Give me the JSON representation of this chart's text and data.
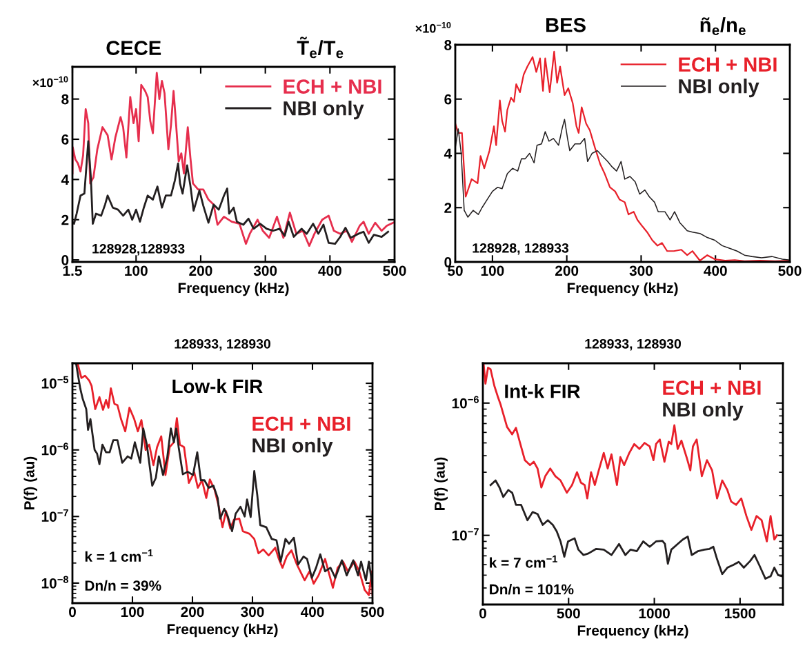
{
  "chart_data": [
    {
      "type": "line",
      "title": "CECE",
      "subtitle": "T̃$_{e}$/T$_{e}$",
      "xlabel": "Frequency (kHz)",
      "ylabel": "×10$^{−10}$",
      "annotations": [
        "128928,128933"
      ],
      "legend": "top right",
      "xlim": [
        1.5,
        500
      ],
      "xticks": [
        1.5,
        100,
        200,
        300,
        400,
        500
      ],
      "ylim": [
        -0.1,
        9.6
      ],
      "yticks": [
        0,
        2,
        4,
        6,
        8
      ],
      "series": [
        {
          "name": "ECH + NBI",
          "color": "#e62e4d",
          "x": [
            1.5,
            2,
            6,
            10,
            14,
            18,
            22,
            26,
            29,
            34,
            40,
            48,
            56,
            62,
            68,
            76,
            80,
            85,
            91,
            96,
            100,
            104,
            108,
            114,
            118,
            122,
            126,
            132,
            136,
            140,
            144,
            150,
            154,
            158,
            162,
            166,
            170,
            174,
            180,
            184,
            188,
            196,
            204,
            212,
            220,
            226,
            236,
            248,
            260,
            270,
            276,
            288,
            296,
            306,
            318,
            328,
            338,
            348,
            358,
            368,
            376,
            388,
            398,
            406,
            416,
            426,
            434,
            446,
            452,
            460,
            470,
            480,
            488,
            498
          ],
          "values": [
            4.3,
            5.6,
            5.0,
            4.8,
            4.4,
            5.2,
            7.5,
            6.8,
            3.8,
            4.1,
            5.5,
            6.6,
            6.2,
            5.0,
            6.1,
            7.1,
            6.6,
            5.1,
            8.1,
            6.8,
            7.5,
            5.9,
            8.7,
            8.4,
            8.1,
            6.9,
            6.3,
            9.3,
            8.0,
            8.9,
            8.3,
            5.5,
            6.7,
            8.4,
            6.7,
            4.9,
            5.3,
            4.3,
            6.6,
            5.1,
            3.8,
            3.5,
            3.5,
            3.0,
            2.75,
            1.75,
            2.15,
            1.9,
            1.8,
            0.8,
            1.3,
            2.0,
            1.45,
            1.1,
            2.15,
            1.1,
            2.35,
            1.3,
            1.45,
            0.7,
            1.3,
            2.0,
            2.2,
            1.45,
            1.3,
            1.45,
            0.9,
            1.7,
            1.9,
            1.3,
            1.85,
            1.45,
            1.7,
            1.85
          ]
        },
        {
          "name": "NBI only",
          "color": "#231f20",
          "x": [
            1.5,
            4,
            8,
            14,
            20,
            26,
            30,
            33,
            38,
            46,
            52,
            56,
            64,
            72,
            80,
            88,
            94,
            100,
            106,
            112,
            118,
            126,
            133,
            140,
            146,
            154,
            160,
            165,
            168,
            172,
            179,
            184,
            189,
            194,
            198,
            204,
            212,
            220,
            228,
            236,
            241,
            244,
            251,
            256,
            266,
            274,
            282,
            292,
            302,
            312,
            322,
            330,
            336,
            344,
            356,
            364,
            374,
            382,
            390,
            398,
            408,
            416,
            424,
            432,
            444,
            452,
            460,
            468,
            480,
            490
          ],
          "values": [
            1.9,
            1.8,
            2.3,
            3.2,
            3.3,
            5.9,
            4.1,
            1.8,
            2.3,
            2.2,
            2.75,
            3.2,
            2.6,
            2.5,
            2.2,
            2.5,
            2.0,
            2.5,
            1.9,
            2.6,
            3.2,
            3.0,
            3.65,
            2.6,
            3.2,
            3.2,
            3.95,
            4.8,
            3.8,
            3.3,
            4.7,
            3.7,
            2.45,
            3.0,
            3.45,
            2.7,
            1.85,
            2.75,
            2.5,
            3.2,
            3.55,
            2.3,
            2.6,
            1.9,
            1.75,
            2.05,
            1.55,
            1.8,
            1.55,
            1.45,
            1.55,
            1.2,
            1.9,
            1.15,
            1.55,
            1.3,
            1.8,
            1.3,
            1.75,
            0.85,
            0.8,
            1.15,
            1.6,
            1.1,
            1.3,
            1.4,
            0.85,
            1.25,
            1.15,
            1.4
          ]
        }
      ]
    },
    {
      "type": "line",
      "title": "BES",
      "subtitle": "ñ$_{e}$/n$_{e}$",
      "xlabel": "Frequency (kHz)",
      "ylabel": "×10$^{−10}$",
      "annotations": [
        "128928, 128933"
      ],
      "legend": "top right",
      "xlim": [
        50,
        500
      ],
      "xticks": [
        50,
        100,
        200,
        300,
        400,
        500
      ],
      "ylim": [
        0,
        8
      ],
      "yticks": [
        0,
        2,
        4,
        6,
        8
      ],
      "series": [
        {
          "name": "ECH + NBI",
          "color": "#e8202a",
          "x": [
            50,
            54,
            59,
            64,
            72,
            80,
            84,
            89,
            96,
            102,
            105,
            110,
            113,
            117,
            120,
            125,
            129,
            132,
            137,
            142,
            147,
            154,
            159,
            164,
            168,
            171,
            177,
            183,
            187,
            191,
            197,
            202,
            208,
            213,
            216,
            220,
            226,
            231,
            238,
            245,
            251,
            258,
            265,
            271,
            278,
            283,
            290,
            295,
            302,
            308,
            315,
            322,
            328,
            335,
            344,
            354,
            362,
            369,
            379,
            389,
            399,
            413,
            426,
            439,
            460,
            480,
            500
          ],
          "values": [
            5.1,
            4.75,
            4.75,
            2.4,
            3.05,
            2.9,
            3.9,
            3.45,
            4.1,
            5.0,
            4.3,
            5.95,
            5.2,
            4.8,
            5.6,
            6.05,
            5.9,
            6.55,
            6.25,
            6.9,
            7.2,
            7.55,
            7.0,
            7.5,
            6.3,
            7.5,
            6.25,
            7.75,
            6.6,
            7.2,
            6.15,
            6.4,
            5.85,
            5.0,
            4.75,
            5.7,
            5.1,
            4.85,
            4.2,
            3.6,
            3.25,
            2.75,
            2.6,
            2.3,
            2.2,
            1.75,
            1.85,
            1.55,
            1.3,
            1.1,
            0.8,
            0.6,
            0.7,
            0.4,
            0.4,
            0.45,
            0.25,
            0.4,
            0.05,
            0.25,
            0.1,
            0.05,
            0.07,
            0.03,
            0.05,
            0.03,
            0.05
          ]
        },
        {
          "name": "NBI only",
          "color": "#231f20",
          "x": [
            50,
            54,
            58,
            62,
            67,
            74,
            81,
            86,
            93,
            100,
            107,
            113,
            120,
            127,
            134,
            139,
            144,
            150,
            156,
            160,
            166,
            171,
            176,
            182,
            189,
            194,
            197,
            201,
            204,
            211,
            218,
            224,
            228,
            234,
            241,
            248,
            255,
            261,
            267,
            273,
            278,
            285,
            292,
            298,
            305,
            311,
            318,
            323,
            332,
            339,
            345,
            352,
            362,
            369,
            379,
            389,
            399,
            409,
            419,
            429,
            439,
            449,
            462,
            476,
            490,
            500
          ],
          "values": [
            4.2,
            4.9,
            4.0,
            1.9,
            1.65,
            1.9,
            1.75,
            2.0,
            2.3,
            2.6,
            2.75,
            2.7,
            3.25,
            3.45,
            3.35,
            3.8,
            3.8,
            4.0,
            3.65,
            4.3,
            4.35,
            4.8,
            4.45,
            4.55,
            4.3,
            4.95,
            5.25,
            4.55,
            4.1,
            4.35,
            4.35,
            4.55,
            3.7,
            4.0,
            4.1,
            3.9,
            3.7,
            3.5,
            3.35,
            3.7,
            3.05,
            3.15,
            2.95,
            2.5,
            2.65,
            2.4,
            2.2,
            1.85,
            1.85,
            1.55,
            1.85,
            1.45,
            1.15,
            1.1,
            1.05,
            0.9,
            0.8,
            0.6,
            0.5,
            0.4,
            0.25,
            0.2,
            0.15,
            0.2,
            0.1,
            0.07
          ]
        }
      ]
    },
    {
      "type": "line",
      "title": "128933, 128930",
      "xlabel": "Frequency (kHz)",
      "ylabel": "P(f) (au)",
      "annotations": [
        "Low-k FIR",
        "k = 1 cm$^{−1}$",
        "Dn/n = 39%"
      ],
      "legend": "right",
      "log": "y",
      "xlim": [
        0,
        500
      ],
      "xticks": [
        0,
        100,
        200,
        300,
        400,
        500
      ],
      "ylim": [
        5e-09,
        2e-05
      ],
      "yticks": [
        {
          "value": 1e-08,
          "label": "10$^{−8}$"
        },
        {
          "value": 1e-07,
          "label": "10$^{−7}$"
        },
        {
          "value": 1e-06,
          "label": "10$^{−6}$"
        },
        {
          "value": 1e-05,
          "label": "10$^{−5}$"
        }
      ],
      "series": [
        {
          "name": "ECH + NBI",
          "color": "#e8202a",
          "x": [
            8.5,
            15,
            21,
            28,
            32,
            38,
            45,
            51,
            56,
            60,
            64,
            70,
            75,
            81,
            88,
            95,
            103,
            109,
            115,
            122,
            128,
            135,
            141,
            148,
            155,
            162,
            169,
            174,
            179,
            186,
            194,
            203,
            209,
            216,
            223,
            229,
            237,
            244,
            250,
            256,
            263,
            269,
            278,
            284,
            295,
            303,
            310,
            318,
            327,
            338,
            344,
            350,
            357,
            365,
            374,
            387,
            395,
            402,
            410,
            421,
            434,
            442,
            451,
            459,
            470,
            478,
            487,
            494,
            499,
            500
          ],
          "values": [
            2e-05,
            1.2e-05,
            1.3e-05,
            1.1e-05,
            9.1e-06,
            4.1e-06,
            6.2e-06,
            4e-06,
            5.6e-06,
            4.3e-06,
            8.4e-06,
            4.9e-06,
            4.7e-06,
            2.9e-06,
            1.9e-06,
            4.3e-06,
            2.9e-06,
            1.9e-06,
            2.8e-06,
            1e-06,
            1.2e-06,
            5.9e-07,
            1.1e-06,
            1.6e-06,
            4.2e-07,
            1.1e-06,
            1.3e-06,
            3e-06,
            1.2e-06,
            1.1e-06,
            3.2e-07,
            4.6e-07,
            2.7e-07,
            3.5e-07,
            1.9e-07,
            3.6e-07,
            2.5e-07,
            1.4e-07,
            6.9e-08,
            1.2e-07,
            6.6e-08,
            8.9e-08,
            9.3e-08,
            6e-08,
            5.5e-08,
            4.6e-08,
            2.8e-08,
            3.2e-08,
            2.6e-08,
            3.4e-08,
            2.3e-08,
            1.7e-08,
            2.5e-08,
            3.1e-08,
            1.9e-08,
            1.1e-08,
            1.5e-08,
            9.8e-09,
            1.3e-08,
            2.3e-08,
            8.5e-09,
            1.7e-08,
            2.1e-08,
            1.5e-08,
            2.1e-08,
            1.5e-08,
            7.9e-09,
            6.6e-09,
            1.5e-08,
            6.6e-09
          ]
        },
        {
          "name": "NBI only",
          "color": "#231f20",
          "x": [
            6,
            13,
            17,
            23,
            26,
            30,
            37,
            41,
            45,
            50,
            56,
            62,
            68,
            75,
            83,
            92,
            98,
            104,
            113,
            118,
            124,
            133,
            139,
            144,
            151,
            158,
            164,
            169,
            173,
            177,
            184,
            192,
            201,
            208,
            214,
            220,
            227,
            235,
            242,
            246,
            253,
            259,
            266,
            272,
            280,
            287,
            291,
            297,
            303,
            308,
            313,
            323,
            332,
            340,
            347,
            355,
            361,
            369,
            376,
            385,
            391,
            399,
            406,
            413,
            421,
            430,
            438,
            449,
            457,
            468,
            476,
            481,
            489,
            494,
            500
          ],
          "values": [
            2e-05,
            8.4e-06,
            5.9e-06,
            4.1e-06,
            2e-06,
            2.9e-06,
            1e-06,
            8.8e-07,
            6.1e-07,
            1.2e-06,
            9.2e-07,
            9.2e-07,
            1.4e-06,
            1.4e-06,
            6.4e-07,
            8e-07,
            7.4e-07,
            1.3e-06,
            6.4e-07,
            2.1e-06,
            1.2e-06,
            2.9e-07,
            3.8e-07,
            8e-07,
            4.2e-07,
            7.7e-07,
            2.1e-06,
            1.3e-06,
            2.1e-06,
            1.1e-06,
            4.3e-07,
            4.7e-07,
            4.2e-07,
            9.2e-07,
            3.5e-07,
            3.5e-07,
            2.7e-07,
            2.9e-07,
            1.9e-07,
            9.3e-08,
            1.3e-07,
            1e-07,
            6e-08,
            1.1e-07,
            1.4e-07,
            1e-07,
            1.8e-07,
            9.8e-08,
            4.8e-07,
            2.1e-07,
            7.4e-08,
            6.9e-08,
            4.6e-08,
            4.4e-08,
            2.1e-08,
            4.6e-08,
            3.9e-08,
            4.8e-08,
            1.9e-08,
            2.5e-08,
            2.3e-08,
            1.2e-08,
            1.7e-08,
            2.7e-08,
            1.5e-08,
            1.7e-08,
            1.2e-08,
            2.2e-08,
            1.3e-08,
            2.2e-08,
            1.3e-08,
            2.1e-08,
            1.1e-08,
            2.1e-08,
            8.9e-09
          ]
        }
      ]
    },
    {
      "type": "line",
      "title": "128933, 128930",
      "xlabel": "Frequency (kHz)",
      "ylabel": "P(f) (au)",
      "annotations": [
        "Int-k FIR",
        "k = 7 cm$^{−1}$",
        "Dn/n = 101%"
      ],
      "legend": "top right",
      "log": "y",
      "xlim": [
        0,
        1750
      ],
      "xticks": [
        0,
        500,
        1000,
        1500
      ],
      "ylim": [
        3e-08,
        2e-06
      ],
      "yticks": [
        {
          "value": 1e-07,
          "label": "10$^{−7}$"
        },
        {
          "value": 1e-06,
          "label": "10$^{−6}$"
        }
      ],
      "series": [
        {
          "name": "ECH + NBI",
          "color": "#e8202a",
          "x": [
            4,
            15,
            30,
            45,
            67,
            89,
            104,
            119,
            141,
            171,
            193,
            215,
            245,
            275,
            297,
            319,
            341,
            364,
            393,
            423,
            453,
            490,
            520,
            549,
            572,
            594,
            609,
            631,
            653,
            676,
            705,
            728,
            750,
            782,
            802,
            824,
            854,
            883,
            913,
            943,
            973,
            995,
            1010,
            1032,
            1059,
            1084,
            1099,
            1117,
            1136,
            1158,
            1188,
            1210,
            1225,
            1247,
            1277,
            1307,
            1337,
            1366,
            1396,
            1426,
            1448,
            1477,
            1507,
            1537,
            1566,
            1596,
            1626,
            1656,
            1678,
            1700,
            1715
          ],
          "values": [
            2e-06,
            1.4e-06,
            1.85e-06,
            1.8e-06,
            1.35e-06,
            1.1e-06,
            9.7e-07,
            8.3e-07,
            6.6e-07,
            5.8e-07,
            6.5e-07,
            5.1e-07,
            3.7e-07,
            3.4e-07,
            3.6e-07,
            3.2e-07,
            2.3e-07,
            2.8e-07,
            3.2e-07,
            2.8e-07,
            2.6e-07,
            2.1e-07,
            2.4e-07,
            3e-07,
            2.5e-07,
            2.4e-07,
            1.9e-07,
            3e-07,
            2.4e-07,
            3.1e-07,
            4.2e-07,
            3.2e-07,
            4.1e-07,
            2.4e-07,
            3.9e-07,
            3.4e-07,
            4.2e-07,
            4.9e-07,
            4.5e-07,
            5e-07,
            4.7e-07,
            3.7e-07,
            4.9e-07,
            5.3e-07,
            3.6e-07,
            5.1e-07,
            4.9e-07,
            6.8e-07,
            4.5e-07,
            5.2e-07,
            3.9e-07,
            3.1e-07,
            4.7e-07,
            5.3e-07,
            2.8e-07,
            3.7e-07,
            3.1e-07,
            1.9e-07,
            2.6e-07,
            2.2e-07,
            1.8e-07,
            1.7e-07,
            1.9e-07,
            1.4e-07,
            1.1e-07,
            1.4e-07,
            1.3e-07,
            9e-08,
            1.4e-07,
            9.3e-08,
            1e-07
          ]
        },
        {
          "name": "NBI only",
          "color": "#231f20",
          "x": [
            45,
            74,
            97,
            119,
            148,
            171,
            193,
            223,
            260,
            290,
            319,
            349,
            379,
            408,
            431,
            453,
            475,
            497,
            535,
            557,
            587,
            616,
            661,
            705,
            750,
            794,
            831,
            861,
            898,
            935,
            973,
            1010,
            1047,
            1062,
            1079,
            1099,
            1136,
            1166,
            1195,
            1218,
            1255,
            1292,
            1322,
            1344,
            1366,
            1396,
            1426,
            1463,
            1492,
            1522,
            1559,
            1584,
            1611,
            1648,
            1678,
            1700,
            1722,
            1745
          ],
          "values": [
            2.4e-07,
            2.6e-07,
            2.3e-07,
            1.95e-07,
            2.2e-07,
            2.1e-07,
            1.7e-07,
            1.7e-07,
            1.3e-07,
            1.5e-07,
            1.45e-07,
            1.2e-07,
            1.3e-07,
            1.2e-07,
            1.07e-07,
            9e-08,
            6.9e-08,
            9e-08,
            9.5e-08,
            7.8e-08,
            7.1e-08,
            7.3e-08,
            7.9e-08,
            7.8e-08,
            7.1e-08,
            8.6e-08,
            7.1e-08,
            7.8e-08,
            7.6e-08,
            9e-08,
            8.2e-08,
            9e-08,
            9.1e-08,
            8.6e-08,
            6.1e-08,
            7.8e-08,
            8.6e-08,
            9.3e-08,
            9.8e-08,
            7.1e-08,
            7.6e-08,
            7.8e-08,
            7.9e-08,
            8.2e-08,
            6.6e-08,
            5.1e-08,
            5.7e-08,
            6e-08,
            6.3e-08,
            5.7e-08,
            6.4e-08,
            7.1e-08,
            6e-08,
            4.7e-08,
            4.9e-08,
            5.7e-08,
            5e-08,
            4.9e-08
          ]
        }
      ]
    }
  ]
}
